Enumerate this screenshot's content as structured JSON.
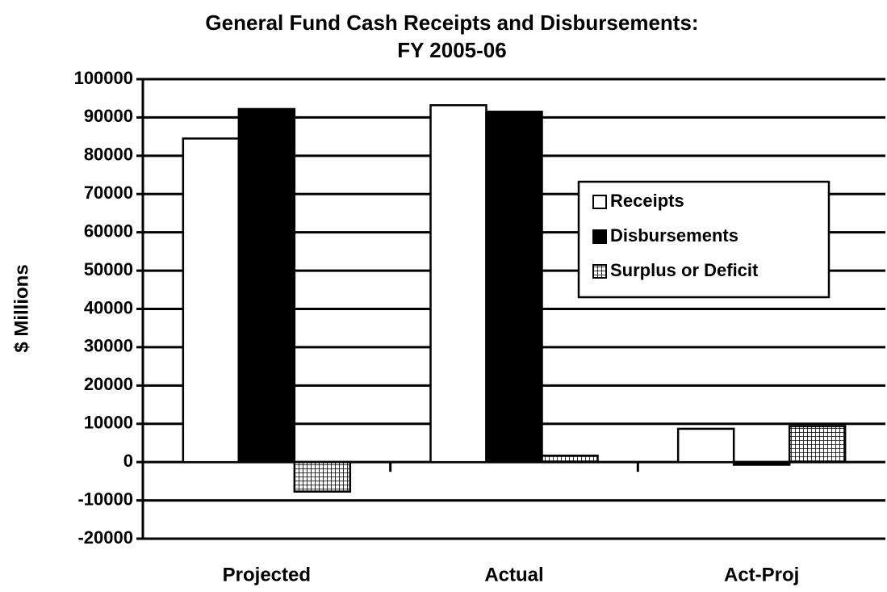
{
  "chart_data": {
    "type": "bar",
    "title": "General Fund Cash Receipts and Disbursements:",
    "subtitle": "FY 2005-06",
    "y_label": "$ Millions",
    "categories": [
      "Projected",
      "Actual",
      "Act-Proj"
    ],
    "series": [
      {
        "name": "Receipts",
        "color": "#ffffff",
        "values": [
          84500,
          93200,
          8700
        ]
      },
      {
        "name": "Disbursements",
        "color": "#000000",
        "values": [
          92200,
          91500,
          -700
        ]
      },
      {
        "name": "Surplus or Deficit",
        "color": "grid-pattern",
        "values": [
          -7700,
          1700,
          9400
        ]
      }
    ],
    "ylim": [
      -20000,
      100000
    ],
    "yticks": [
      -20000,
      -10000,
      0,
      10000,
      20000,
      30000,
      40000,
      50000,
      60000,
      70000,
      80000,
      90000,
      100000
    ],
    "grid": true,
    "legend": "right"
  }
}
